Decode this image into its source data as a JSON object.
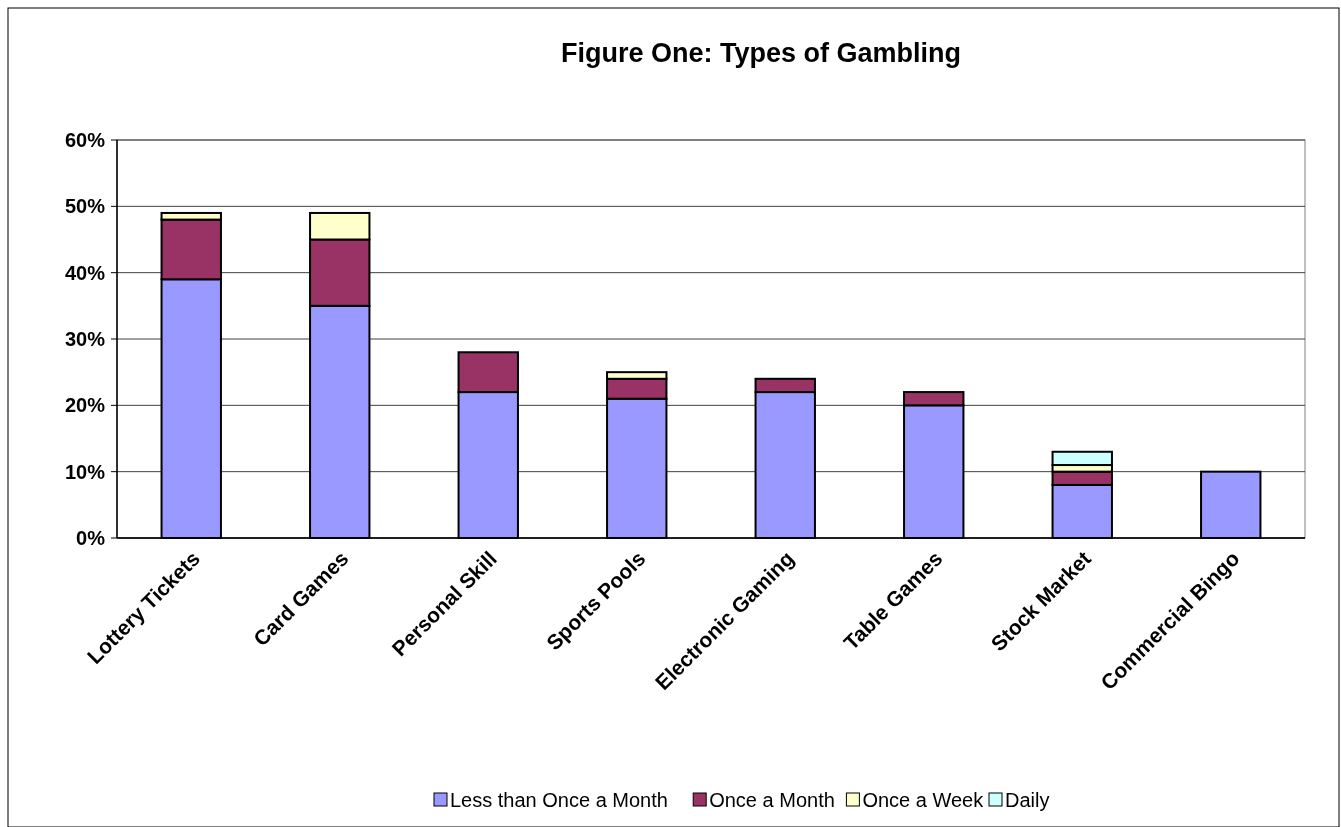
{
  "chart_data": {
    "type": "bar",
    "title": "Figure One: Types of Gambling",
    "stacked": true,
    "categories": [
      "Lottery Tickets",
      "Card Games",
      "Personal Skill",
      "Sports Pools",
      "Electronic Gaming",
      "Table Games",
      "Stock Market",
      "Commercial Bingo"
    ],
    "series": [
      {
        "name": "Less than Once a Month",
        "color": "#9999ff",
        "values": [
          39,
          35,
          22,
          21,
          22,
          20,
          8,
          10
        ]
      },
      {
        "name": "Once a Month",
        "color": "#993366",
        "values": [
          9,
          10,
          6,
          3,
          2,
          2,
          2,
          null
        ]
      },
      {
        "name": "Once a Week",
        "color": "#ffffcc",
        "values": [
          1,
          4,
          null,
          1,
          null,
          null,
          1,
          null
        ]
      },
      {
        "name": "Daily",
        "color": "#ccffff",
        "values": [
          null,
          null,
          null,
          null,
          null,
          null,
          2,
          null
        ]
      }
    ],
    "ylim": [
      0,
      60
    ],
    "yticks": [
      {
        "value": 0,
        "label": "0%"
      },
      {
        "value": 10,
        "label": "10%"
      },
      {
        "value": 20,
        "label": "20%"
      },
      {
        "value": 30,
        "label": "30%"
      },
      {
        "value": 40,
        "label": "40%"
      },
      {
        "value": 50,
        "label": "50%"
      },
      {
        "value": 60,
        "label": "60%"
      }
    ],
    "grid": "y",
    "legend": "bottom"
  }
}
